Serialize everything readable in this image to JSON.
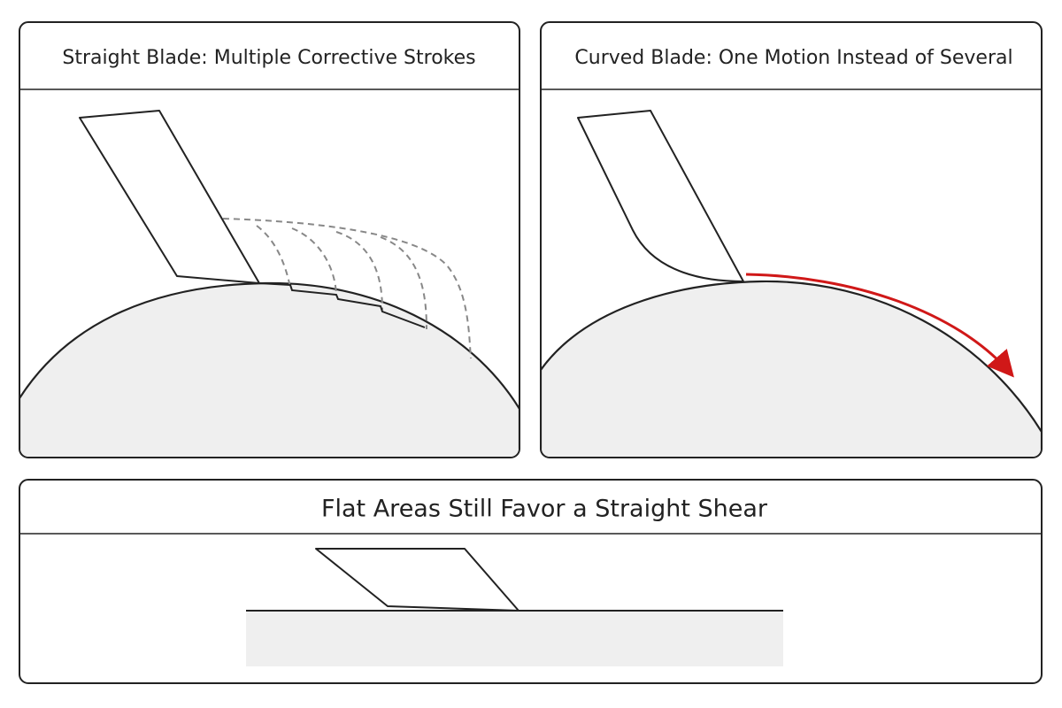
{
  "panels": [
    {
      "title": "Straight Blade: Multiple Corrective Strokes"
    },
    {
      "title": "Curved Blade: One Motion Instead of Several"
    },
    {
      "title": "Flat Areas Still Favor a Straight Shear"
    }
  ]
}
